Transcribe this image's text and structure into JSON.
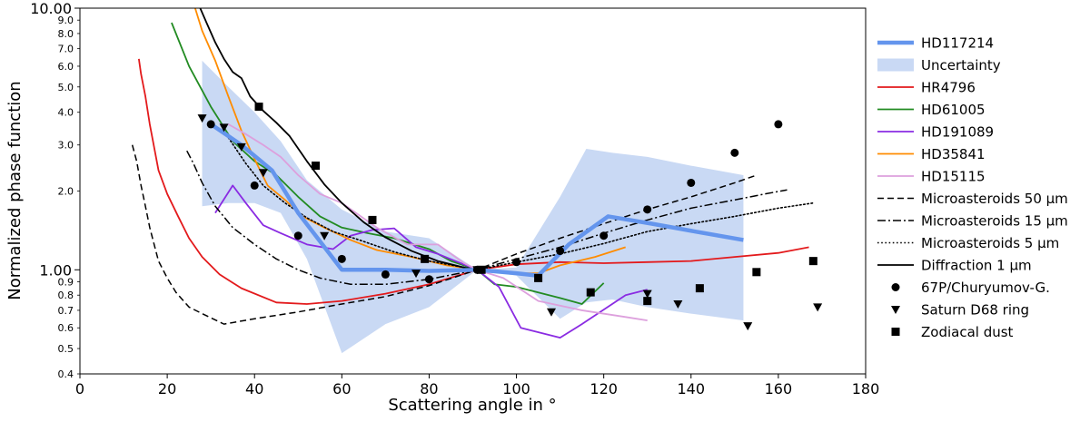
{
  "chart_data": {
    "type": "line",
    "title": "",
    "xlabel": "Scattering angle in °",
    "ylabel": "Normalized phase function",
    "xlim": [
      0,
      180
    ],
    "ylim": [
      0.4,
      10
    ],
    "yscale": "log",
    "grid": false,
    "legend_position": "right",
    "x_ticks": [
      {
        "value": 0,
        "label": "0"
      },
      {
        "value": 20,
        "label": "20"
      },
      {
        "value": 40,
        "label": "40"
      },
      {
        "value": 60,
        "label": "60"
      },
      {
        "value": 80,
        "label": "80"
      },
      {
        "value": 100,
        "label": "100"
      },
      {
        "value": 120,
        "label": "120"
      },
      {
        "value": 140,
        "label": "140"
      },
      {
        "value": 160,
        "label": "160"
      },
      {
        "value": 180,
        "label": "180"
      }
    ],
    "y_major_ticks": [
      {
        "value": 1.0,
        "label": "1.00"
      },
      {
        "value": 10.0,
        "label": "10.00"
      }
    ],
    "y_minor_ticks": [
      {
        "value": 0.4,
        "label": "0.4"
      },
      {
        "value": 0.5,
        "label": "0.5"
      },
      {
        "value": 0.6,
        "label": "0.6"
      },
      {
        "value": 0.7,
        "label": "0.7"
      },
      {
        "value": 0.8,
        "label": "0.8"
      },
      {
        "value": 0.9,
        "label": "0.9"
      },
      {
        "value": 2.0,
        "label": "2.0"
      },
      {
        "value": 3.0,
        "label": "3.0"
      },
      {
        "value": 4.0,
        "label": "4.0"
      },
      {
        "value": 5.0,
        "label": "5.0"
      },
      {
        "value": 6.0,
        "label": "6.0"
      },
      {
        "value": 7.0,
        "label": "7.0"
      },
      {
        "value": 8.0,
        "label": "8.0"
      },
      {
        "value": 9.0,
        "label": "9.0"
      }
    ],
    "uncertainty": {
      "name": "Uncertainty",
      "color": "#c9d9f4",
      "x": [
        28,
        34,
        40,
        46,
        52,
        60,
        70,
        80,
        91,
        100,
        110,
        116,
        122,
        130,
        140,
        152
      ],
      "upper": [
        6.3,
        5.0,
        4.0,
        3.1,
        2.2,
        1.7,
        1.4,
        1.32,
        1.0,
        1.02,
        1.9,
        2.9,
        2.8,
        2.7,
        2.5,
        2.3
      ],
      "lower": [
        1.75,
        1.8,
        1.8,
        1.65,
        1.1,
        0.48,
        0.62,
        0.72,
        1.0,
        0.95,
        0.65,
        0.75,
        0.77,
        0.72,
        0.68,
        0.64
      ]
    },
    "series": [
      {
        "name": "HD117214",
        "color": "#6495ed",
        "style": "solid",
        "width": 4.5,
        "x": [
          30,
          37,
          44,
          50,
          60,
          70,
          80,
          91,
          100,
          105,
          112,
          121,
          131,
          141,
          152
        ],
        "y": [
          3.6,
          3.0,
          2.4,
          1.65,
          1.0,
          1.0,
          0.99,
          1.0,
          0.97,
          0.95,
          1.25,
          1.6,
          1.5,
          1.4,
          1.3
        ]
      },
      {
        "name": "HR4796",
        "color": "#e31a1c",
        "style": "solid",
        "width": 1.8,
        "x": [
          13.5,
          14,
          15,
          16,
          18,
          20,
          22.5,
          25,
          28,
          32,
          37,
          45,
          52,
          60,
          70,
          80,
          91,
          100,
          110,
          120,
          130,
          140,
          150,
          160,
          167
        ],
        "y": [
          6.4,
          5.6,
          4.6,
          3.6,
          2.4,
          1.95,
          1.6,
          1.32,
          1.12,
          0.96,
          0.85,
          0.75,
          0.74,
          0.76,
          0.81,
          0.88,
          1.0,
          1.05,
          1.07,
          1.06,
          1.07,
          1.08,
          1.12,
          1.16,
          1.22
        ]
      },
      {
        "name": "HD61005",
        "color": "#228b22",
        "style": "solid",
        "width": 1.8,
        "x": [
          21,
          25,
          30,
          35,
          40,
          45,
          50,
          55,
          60,
          66,
          72,
          80,
          85,
          91,
          95,
          100,
          110,
          115,
          120
        ],
        "y": [
          8.8,
          6.0,
          4.2,
          3.1,
          2.6,
          2.3,
          1.9,
          1.6,
          1.45,
          1.38,
          1.32,
          1.2,
          1.08,
          1.0,
          0.88,
          0.86,
          0.78,
          0.74,
          0.89
        ]
      },
      {
        "name": "HD191089",
        "color": "#8a2be2",
        "style": "solid",
        "width": 1.8,
        "x": [
          31,
          35,
          38,
          42,
          46,
          52,
          58,
          62,
          67,
          72,
          77,
          82,
          91,
          96,
          101,
          110,
          115,
          125,
          130
        ],
        "y": [
          1.65,
          2.1,
          1.8,
          1.48,
          1.38,
          1.25,
          1.2,
          1.35,
          1.42,
          1.44,
          1.22,
          1.15,
          1.0,
          0.86,
          0.6,
          0.55,
          0.62,
          0.8,
          0.84
        ]
      },
      {
        "name": "HD35841",
        "color": "#ff8c00",
        "style": "solid",
        "width": 1.8,
        "x": [
          26,
          28,
          31,
          34,
          37,
          40,
          43,
          47,
          51,
          56,
          62,
          68,
          76,
          84,
          91,
          98,
          105,
          110,
          118,
          125
        ],
        "y": [
          10.5,
          8.2,
          6.3,
          4.6,
          3.4,
          2.65,
          2.1,
          1.85,
          1.6,
          1.45,
          1.3,
          1.19,
          1.12,
          1.04,
          1.0,
          0.97,
          0.97,
          1.04,
          1.12,
          1.22
        ]
      },
      {
        "name": "HD15115",
        "color": "#dda0dd",
        "style": "solid",
        "width": 1.8,
        "x": [
          34,
          38,
          42,
          46,
          50,
          55,
          60,
          68,
          75,
          82,
          88,
          91,
          97,
          105,
          115,
          125,
          130
        ],
        "y": [
          3.6,
          3.3,
          3.0,
          2.7,
          2.3,
          1.95,
          1.8,
          1.45,
          1.25,
          1.25,
          1.06,
          1.0,
          0.93,
          0.76,
          0.7,
          0.66,
          0.64
        ]
      },
      {
        "name": "Microasteroids 50 μm",
        "color": "#000000",
        "style": "dashed",
        "width": 1.5,
        "x": [
          12,
          13,
          14,
          15,
          16,
          17,
          18,
          20,
          22,
          25,
          28,
          33,
          40,
          50,
          60,
          70,
          80,
          91,
          100,
          110,
          120,
          130,
          140,
          150,
          155
        ],
        "y": [
          3.0,
          2.6,
          2.1,
          1.75,
          1.45,
          1.25,
          1.08,
          0.93,
          0.82,
          0.72,
          0.68,
          0.62,
          0.65,
          0.69,
          0.74,
          0.79,
          0.87,
          1.0,
          1.15,
          1.32,
          1.5,
          1.7,
          1.9,
          2.15,
          2.3
        ]
      },
      {
        "name": "Microasteroids 15 μm",
        "color": "#000000",
        "style": "dashdot",
        "width": 1.5,
        "x": [
          24.5,
          26,
          28,
          31,
          35,
          40,
          45,
          50,
          55,
          62,
          70,
          80,
          91,
          100,
          110,
          120,
          130,
          140,
          150,
          157,
          162
        ],
        "y": [
          2.85,
          2.55,
          2.15,
          1.75,
          1.45,
          1.25,
          1.1,
          1.0,
          0.93,
          0.88,
          0.88,
          0.92,
          1.0,
          1.1,
          1.22,
          1.38,
          1.55,
          1.72,
          1.85,
          1.95,
          2.02
        ]
      },
      {
        "name": "Microasteroids 5 μm",
        "color": "#000000",
        "style": "dotted",
        "width": 1.6,
        "x": [
          34,
          38,
          42,
          47,
          52,
          58,
          64,
          72,
          80,
          91,
          100,
          110,
          120,
          130,
          140,
          150,
          160,
          168
        ],
        "y": [
          3.2,
          2.55,
          2.1,
          1.8,
          1.58,
          1.4,
          1.3,
          1.17,
          1.08,
          1.0,
          1.07,
          1.15,
          1.26,
          1.4,
          1.5,
          1.6,
          1.72,
          1.8
        ]
      },
      {
        "name": "Diffraction 1 μm",
        "color": "#000000",
        "style": "solid",
        "width": 1.8,
        "x": [
          27,
          29,
          31,
          33,
          35,
          37,
          39,
          42,
          45,
          48,
          52,
          56,
          60,
          65,
          70,
          76,
          82,
          88,
          91
        ],
        "y": [
          10.5,
          8.8,
          7.4,
          6.4,
          5.7,
          5.4,
          4.6,
          4.05,
          3.65,
          3.25,
          2.6,
          2.12,
          1.8,
          1.52,
          1.33,
          1.18,
          1.08,
          1.02,
          1.0
        ]
      }
    ],
    "scatter": [
      {
        "name": "67P/Churyumov-G.",
        "marker": "circle",
        "color": "#000000",
        "x": [
          30,
          40,
          50,
          60,
          70,
          80,
          91,
          100,
          110,
          120,
          130,
          140,
          150,
          160
        ],
        "y": [
          3.6,
          2.1,
          1.35,
          1.1,
          0.96,
          0.92,
          1.0,
          1.07,
          1.18,
          1.35,
          1.7,
          2.15,
          2.8,
          3.6
        ]
      },
      {
        "name": "Saturn D68 ring",
        "marker": "triangle-down",
        "color": "#000000",
        "x": [
          28,
          33,
          37,
          42,
          56,
          77,
          91,
          108,
          130,
          137,
          153,
          169
        ],
        "y": [
          3.8,
          3.5,
          2.95,
          2.35,
          1.35,
          0.97,
          1.0,
          0.69,
          0.81,
          0.74,
          0.61,
          0.72
        ]
      },
      {
        "name": "Zodiacal dust",
        "marker": "square",
        "color": "#000000",
        "x": [
          41,
          54,
          67,
          79,
          92,
          105,
          117,
          130,
          142,
          155,
          168
        ],
        "y": [
          4.2,
          2.5,
          1.55,
          1.1,
          1.0,
          0.93,
          0.82,
          0.76,
          0.85,
          0.98,
          1.08
        ]
      }
    ],
    "legend": [
      {
        "label": "HD117214",
        "kind": "line",
        "color": "#6495ed",
        "style": "solid",
        "width": 4.5
      },
      {
        "label": "Uncertainty",
        "kind": "patch",
        "color": "#c9d9f4"
      },
      {
        "label": "HR4796",
        "kind": "line",
        "color": "#e31a1c",
        "style": "solid",
        "width": 1.8
      },
      {
        "label": "HD61005",
        "kind": "line",
        "color": "#228b22",
        "style": "solid",
        "width": 1.8
      },
      {
        "label": "HD191089",
        "kind": "line",
        "color": "#8a2be2",
        "style": "solid",
        "width": 1.8
      },
      {
        "label": "HD35841",
        "kind": "line",
        "color": "#ff8c00",
        "style": "solid",
        "width": 1.8
      },
      {
        "label": "HD15115",
        "kind": "line",
        "color": "#dda0dd",
        "style": "solid",
        "width": 1.8
      },
      {
        "label": "Microasteroids 50 μm",
        "kind": "line",
        "color": "#000000",
        "style": "dashed",
        "width": 1.5
      },
      {
        "label": "Microasteroids 15 μm",
        "kind": "line",
        "color": "#000000",
        "style": "dashdot",
        "width": 1.5
      },
      {
        "label": "Microasteroids 5 μm",
        "kind": "line",
        "color": "#000000",
        "style": "dotted",
        "width": 1.6
      },
      {
        "label": "Diffraction 1 μm",
        "kind": "line",
        "color": "#000000",
        "style": "solid",
        "width": 1.8
      },
      {
        "label": "67P/Churyumov-G.",
        "kind": "marker",
        "marker": "circle",
        "color": "#000000"
      },
      {
        "label": "Saturn D68 ring",
        "kind": "marker",
        "marker": "triangle-down",
        "color": "#000000"
      },
      {
        "label": "Zodiacal dust",
        "kind": "marker",
        "marker": "square",
        "color": "#000000"
      }
    ]
  }
}
